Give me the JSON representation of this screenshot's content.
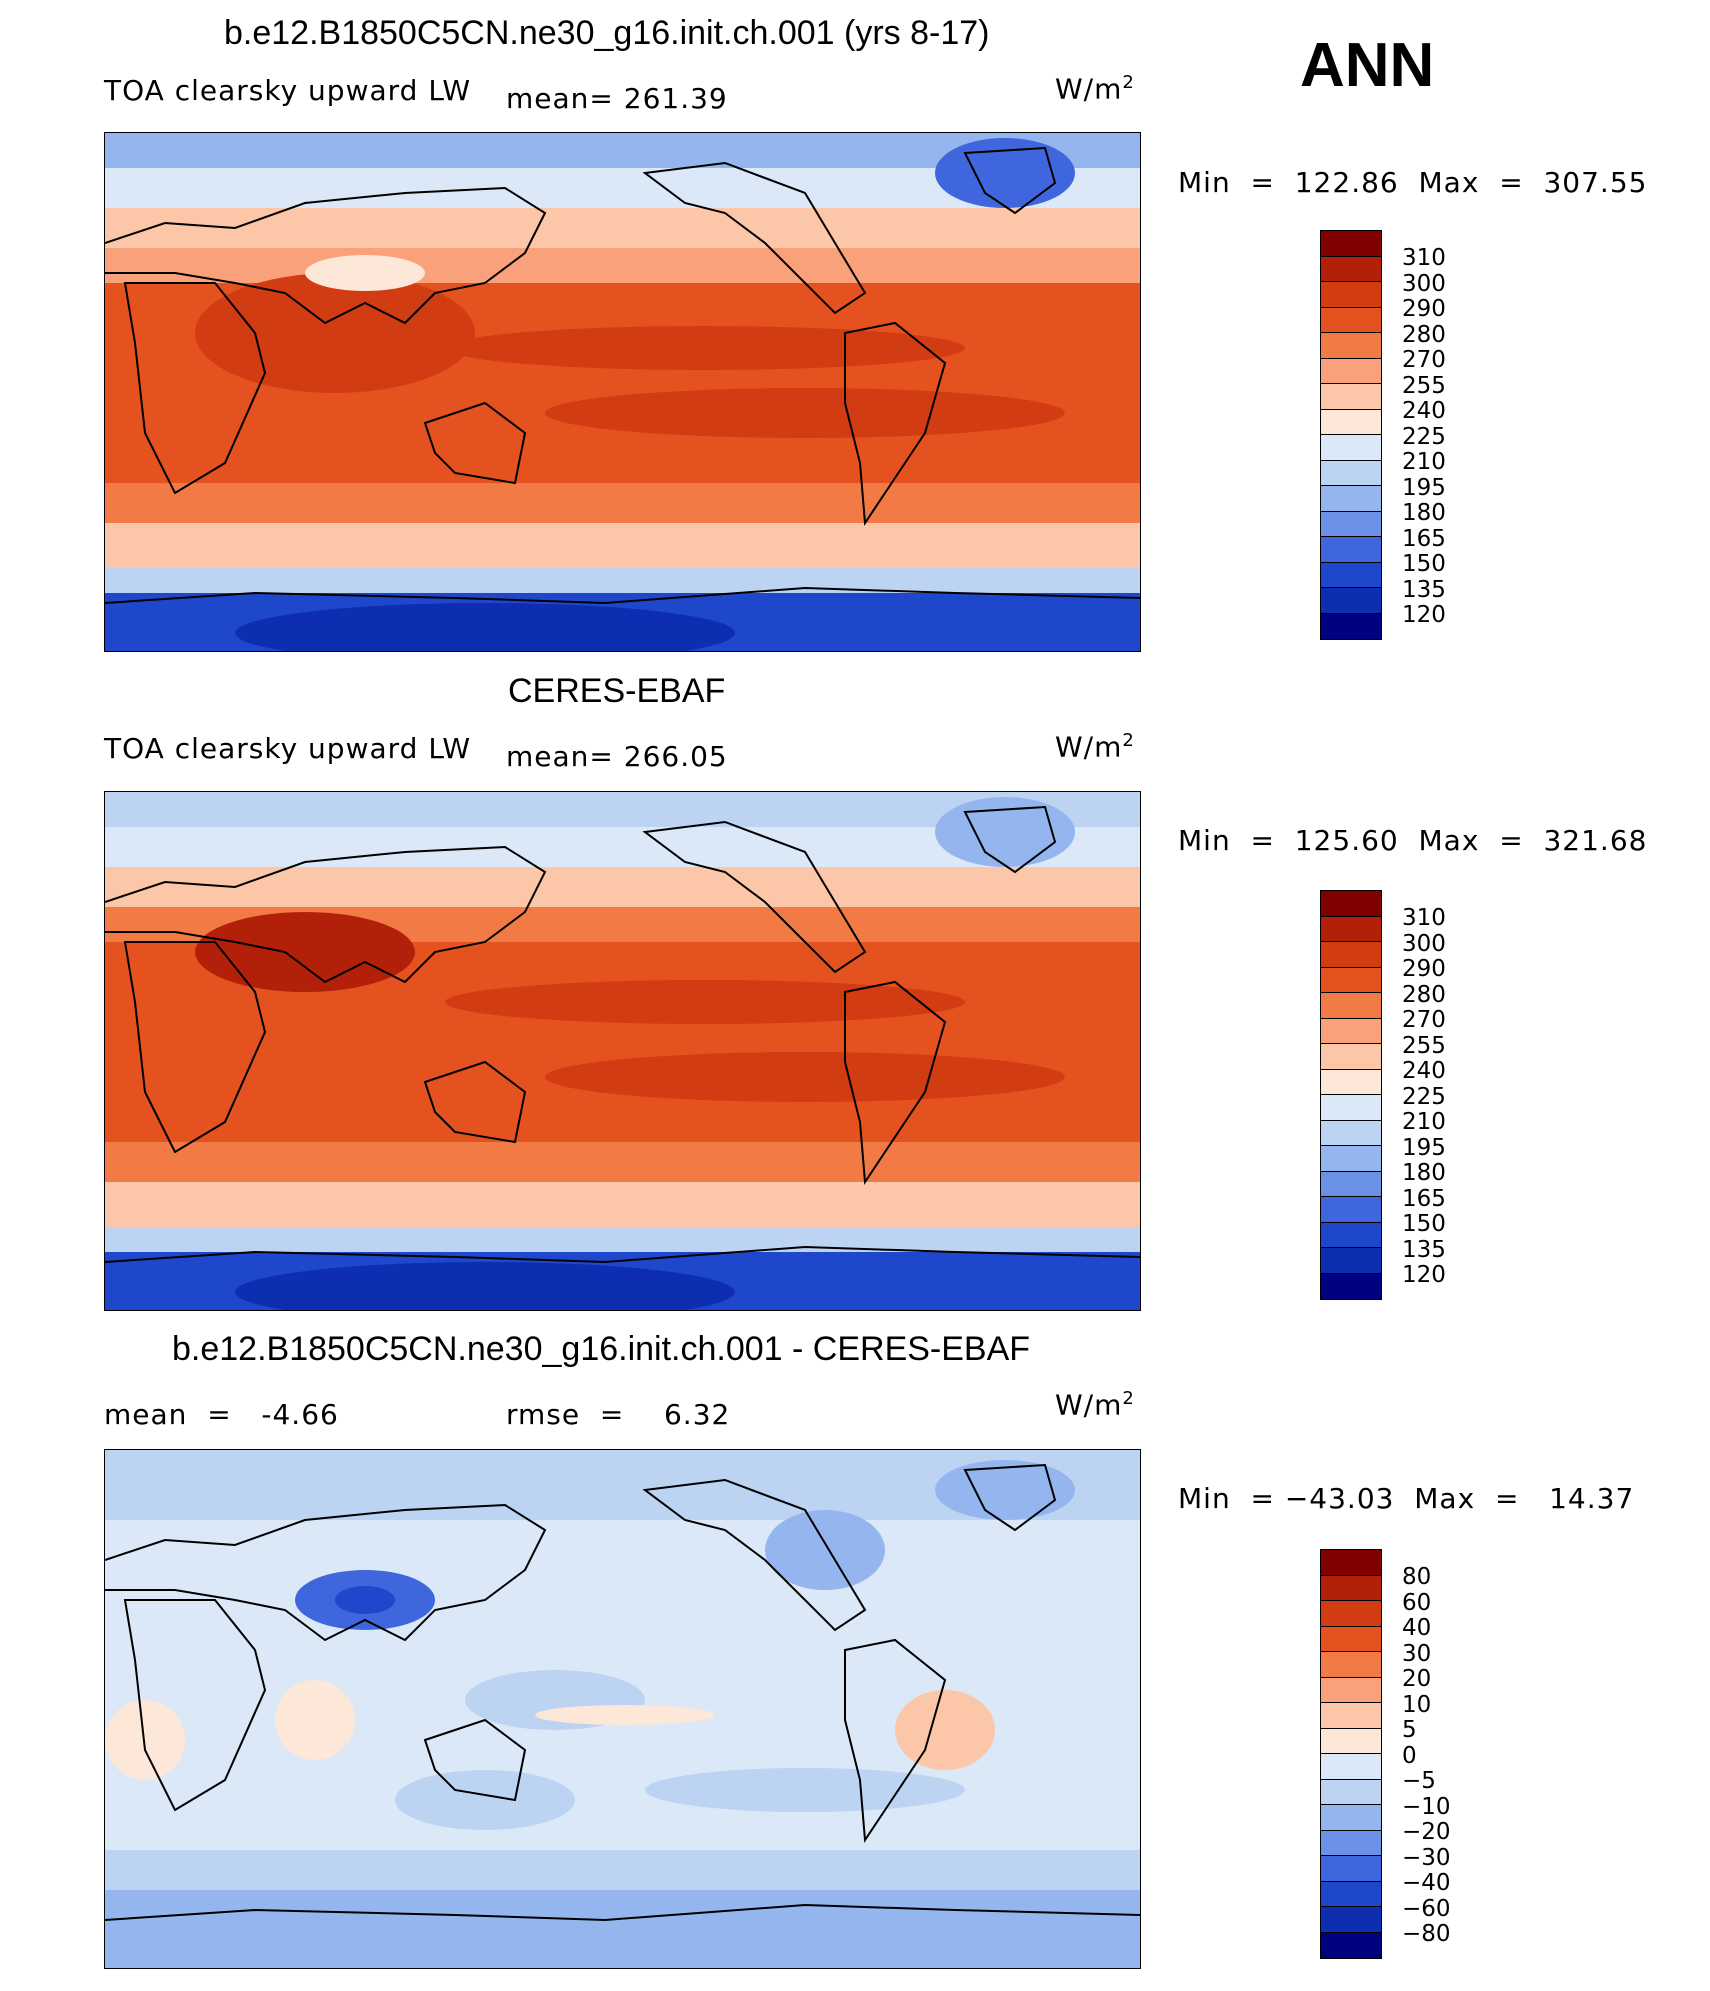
{
  "season": "ANN",
  "units_word": "W/m",
  "units_sup": "2",
  "panels": [
    {
      "title": "b.e12.B1850C5CN.ne30_g16.init.ch.001 (yrs 8-17)",
      "left_label": "TOA clearsky upward LW",
      "stat_label": "mean= 261.39",
      "minmax": "Min  =  122.86  Max  =  307.55",
      "levels": [
        "310",
        "300",
        "290",
        "280",
        "270",
        "255",
        "240",
        "225",
        "210",
        "195",
        "180",
        "165",
        "150",
        "135",
        "120"
      ],
      "colors": [
        "#800000",
        "#b3200a",
        "#d13c12",
        "#e4531f",
        "#f27a45",
        "#f9a17a",
        "#fcc6a8",
        "#fde7d8",
        "#dbe8f7",
        "#bcd3f2",
        "#94b5ee",
        "#6b91e6",
        "#3f66dc",
        "#1f47cc",
        "#0d2eb0",
        "#000080"
      ]
    },
    {
      "title": "CERES-EBAF",
      "left_label": "TOA clearsky upward LW",
      "stat_label": "mean= 266.05",
      "minmax": "Min  =  125.60  Max  =  321.68",
      "levels": [
        "310",
        "300",
        "290",
        "280",
        "270",
        "255",
        "240",
        "225",
        "210",
        "195",
        "180",
        "165",
        "150",
        "135",
        "120"
      ],
      "colors": [
        "#800000",
        "#b3200a",
        "#d13c12",
        "#e4531f",
        "#f27a45",
        "#f9a17a",
        "#fcc6a8",
        "#fde7d8",
        "#dbe8f7",
        "#bcd3f2",
        "#94b5ee",
        "#6b91e6",
        "#3f66dc",
        "#1f47cc",
        "#0d2eb0",
        "#000080"
      ]
    },
    {
      "title": "b.e12.B1850C5CN.ne30_g16.init.ch.001 - CERES-EBAF",
      "left_label": "mean  =   -4.66",
      "stat_label": "rmse  =    6.32",
      "minmax": "Min  = −43.03  Max  =   14.37",
      "levels": [
        "80",
        "60",
        "40",
        "30",
        "20",
        "10",
        "5",
        "0",
        "−5",
        "−10",
        "−20",
        "−30",
        "−40",
        "−60",
        "−80"
      ],
      "colors": [
        "#800000",
        "#b3200a",
        "#d13c12",
        "#e4531f",
        "#f27a45",
        "#f9a17a",
        "#fcc6a8",
        "#fde7d8",
        "#dbe8f7",
        "#bcd3f2",
        "#94b5ee",
        "#6b91e6",
        "#3f66dc",
        "#1f47cc",
        "#0d2eb0",
        "#000080"
      ]
    }
  ]
}
